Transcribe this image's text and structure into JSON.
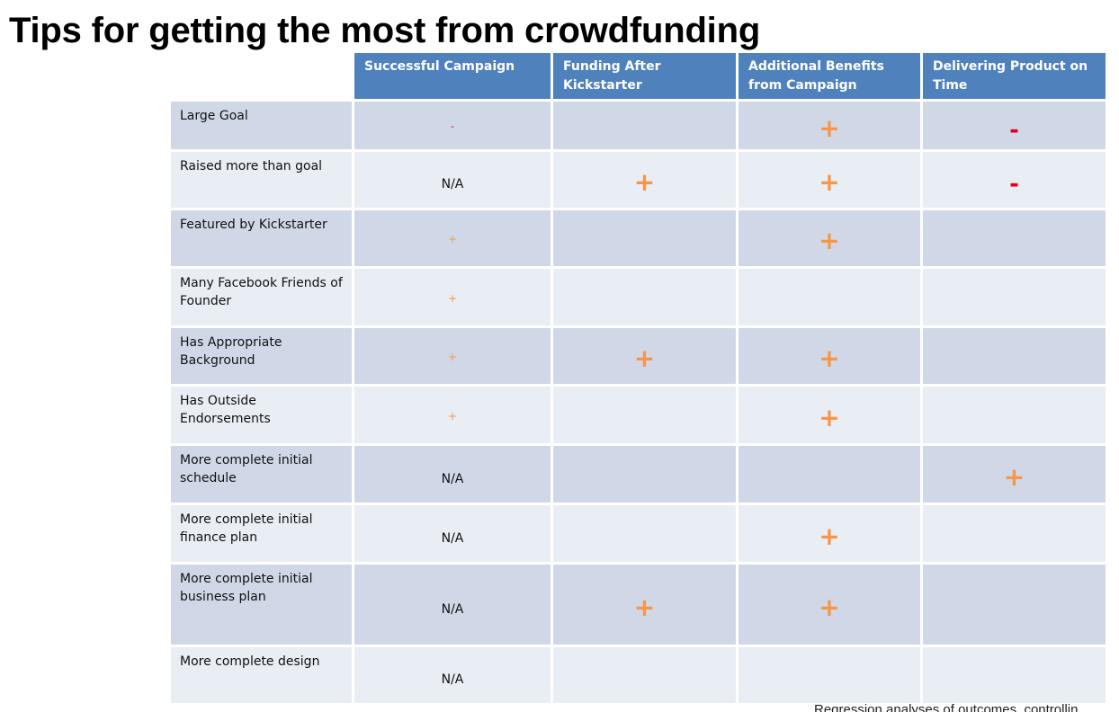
{
  "title": "Tips for getting the most from crowdfunding",
  "table": {
    "headers": [
      "Successful Campaign",
      "Funding After Kickstarter",
      "Additional Benefits from Campaign",
      "Delivering Product on Time"
    ],
    "rows": [
      {
        "label": "Large Goal",
        "cells": [
          "-",
          "",
          "+",
          "-"
        ]
      },
      {
        "label": "Raised more than goal",
        "cells": [
          "N/A",
          "+",
          "+",
          "-"
        ]
      },
      {
        "label": "Featured by Kickstarter",
        "cells": [
          "+",
          "",
          "+",
          ""
        ]
      },
      {
        "label": "Many Facebook Friends of Founder",
        "cells": [
          "+",
          "",
          "",
          ""
        ]
      },
      {
        "label": "Has Appropriate Background",
        "cells": [
          "+",
          "+",
          "+",
          ""
        ]
      },
      {
        "label": "Has Outside Endorsements",
        "cells": [
          "+",
          "",
          "+",
          ""
        ]
      },
      {
        "label": "More complete initial schedule",
        "cells": [
          "N/A",
          "",
          "",
          "+"
        ]
      },
      {
        "label": "More complete initial finance plan",
        "cells": [
          "N/A",
          "",
          "+",
          ""
        ]
      },
      {
        "label": "More complete initial business plan",
        "cells": [
          "N/A",
          "+",
          "+",
          ""
        ]
      },
      {
        "label": "More complete design",
        "cells": [
          "N/A",
          "",
          "",
          ""
        ]
      }
    ]
  },
  "footnote": "Regression analyses of outcomes, controllin",
  "colors": {
    "header": "#4f81bd",
    "band_dark": "#d0d8e8",
    "band_light": "#e9edf4",
    "plus": "#f79646",
    "minus": "#e0001a"
  }
}
